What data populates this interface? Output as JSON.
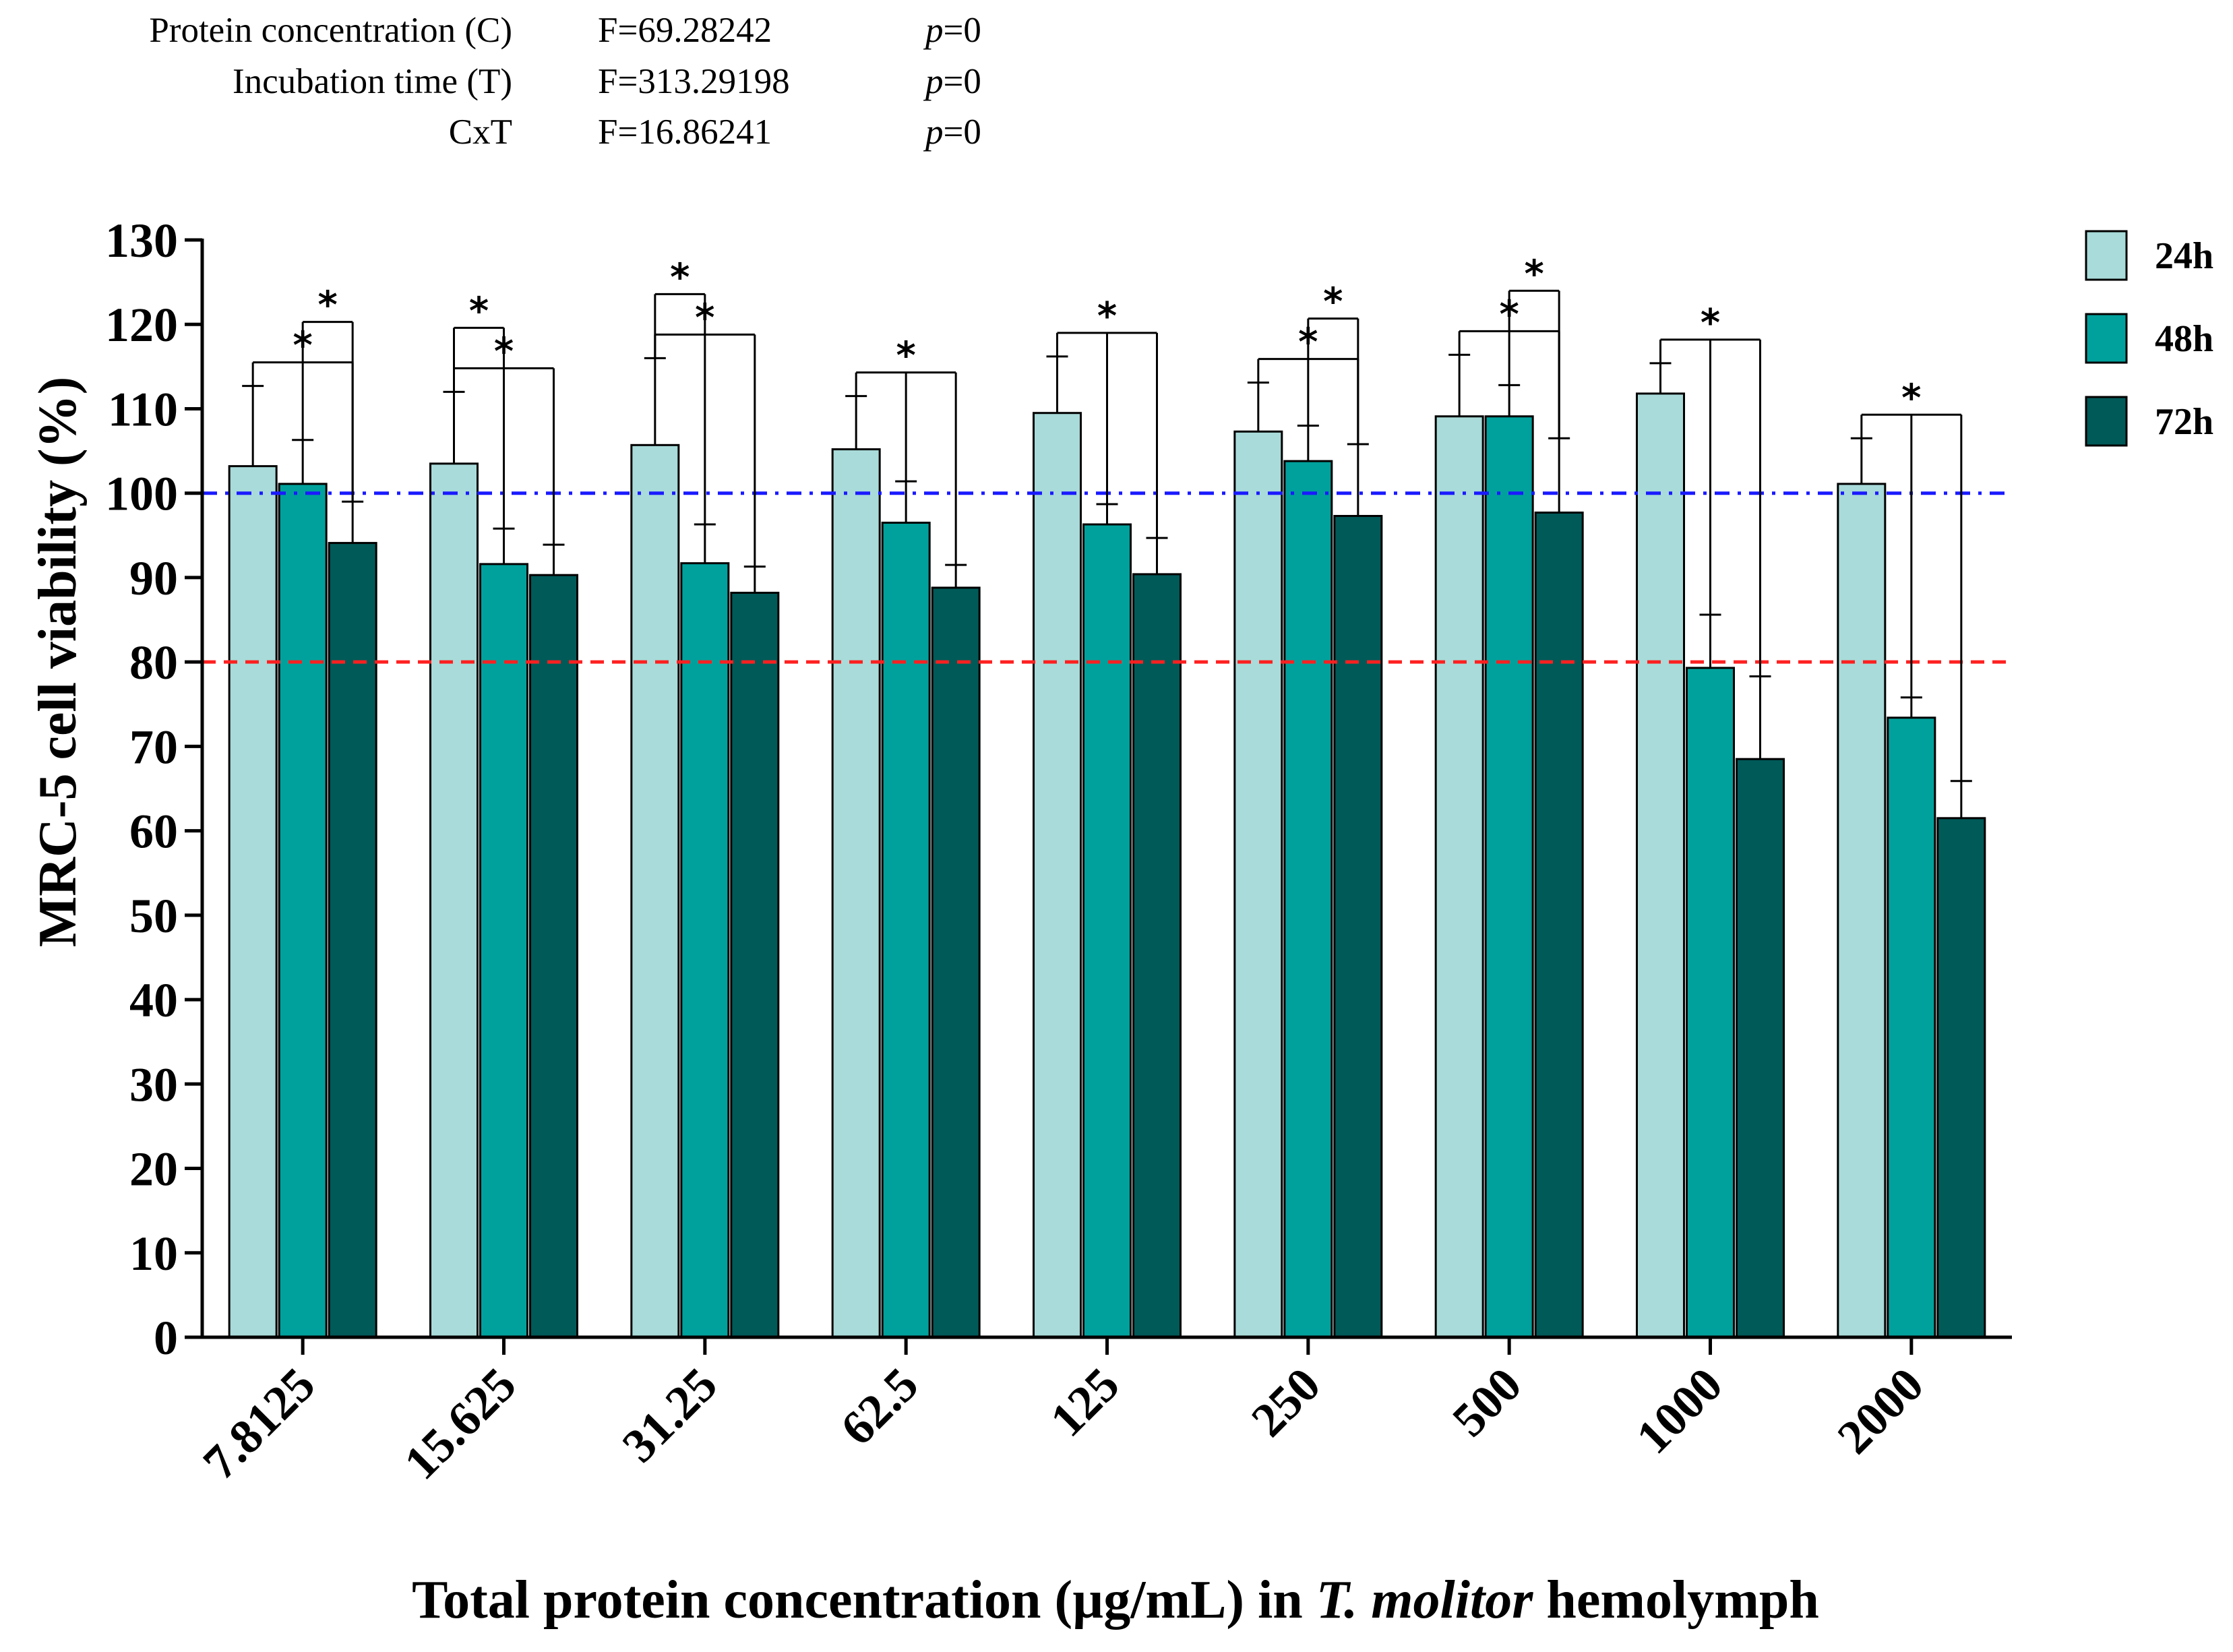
{
  "stats": [
    {
      "label": "Protein concentration (C)",
      "f": "F=69.28242",
      "p_symbol": "p",
      "p_value": "=0"
    },
    {
      "label": "Incubation time (T)",
      "f": "F=313.29198",
      "p_symbol": "p",
      "p_value": "=0"
    },
    {
      "label": "CxT",
      "f": "F=16.86241",
      "p_symbol": "p",
      "p_value": "=0"
    }
  ],
  "chart_data": {
    "type": "bar",
    "ylabel": "MRC-5 cell viability (%)",
    "xlabel_parts": [
      "Total protein concentration (µg/mL) in ",
      "T. molitor",
      " hemolymph"
    ],
    "ylim": [
      0,
      130
    ],
    "yticks": [
      0,
      10,
      20,
      30,
      40,
      50,
      60,
      70,
      80,
      90,
      100,
      110,
      120,
      130
    ],
    "categories": [
      "7.8125",
      "15.625",
      "31.25",
      "62.5",
      "125",
      "250",
      "500",
      "1000",
      "2000"
    ],
    "series": [
      {
        "name": "24h",
        "color": "#a8dbd9",
        "values": [
          103.2,
          103.5,
          105.7,
          105.2,
          109.5,
          107.3,
          109.1,
          111.8,
          101.1
        ],
        "errors": [
          9.5,
          8.5,
          10.3,
          6.3,
          6.7,
          5.8,
          7.3,
          3.6,
          5.4
        ]
      },
      {
        "name": "48h",
        "color": "#00a19c",
        "values": [
          101.1,
          91.6,
          91.7,
          96.5,
          96.3,
          103.8,
          109.1,
          79.3,
          73.4
        ],
        "errors": [
          5.2,
          4.2,
          4.6,
          4.9,
          2.4,
          4.2,
          3.7,
          6.3,
          2.4
        ]
      },
      {
        "name": "72h",
        "color": "#005a58",
        "values": [
          94.1,
          90.3,
          88.2,
          88.8,
          90.4,
          97.3,
          97.7,
          68.5,
          61.5
        ],
        "errors": [
          4.9,
          3.6,
          3.1,
          2.7,
          4.3,
          8.5,
          8.8,
          9.8,
          4.4
        ]
      }
    ],
    "reference_lines": [
      {
        "value": 100,
        "color": "#1a1aff",
        "style": "dash-dot"
      },
      {
        "value": 80,
        "color": "#ff2020",
        "style": "dashed"
      }
    ],
    "significance": [
      {
        "category": 0,
        "from": 0,
        "to": 2,
        "label": "*"
      },
      {
        "category": 0,
        "from": 1,
        "to": 2,
        "label": "*"
      },
      {
        "category": 1,
        "from": 0,
        "to": 2,
        "label": "*"
      },
      {
        "category": 1,
        "from": 0,
        "to": 1,
        "label": "*"
      },
      {
        "category": 2,
        "from": 0,
        "to": 2,
        "label": "*"
      },
      {
        "category": 2,
        "from": 0,
        "to": 1,
        "label": "*"
      },
      {
        "category": 3,
        "from": 0,
        "to": 2,
        "label": "*",
        "mid": 1
      },
      {
        "category": 4,
        "from": 0,
        "to": 2,
        "label": "*",
        "mid": 1
      },
      {
        "category": 5,
        "from": 0,
        "to": 2,
        "label": "*"
      },
      {
        "category": 5,
        "from": 1,
        "to": 2,
        "label": "*"
      },
      {
        "category": 6,
        "from": 0,
        "to": 2,
        "label": "*"
      },
      {
        "category": 6,
        "from": 1,
        "to": 2,
        "label": "*"
      },
      {
        "category": 7,
        "from": 0,
        "to": 2,
        "label": "*",
        "mid": 1
      },
      {
        "category": 8,
        "from": 0,
        "to": 2,
        "label": "*",
        "mid": 1
      }
    ],
    "legend_position": "top-right"
  }
}
